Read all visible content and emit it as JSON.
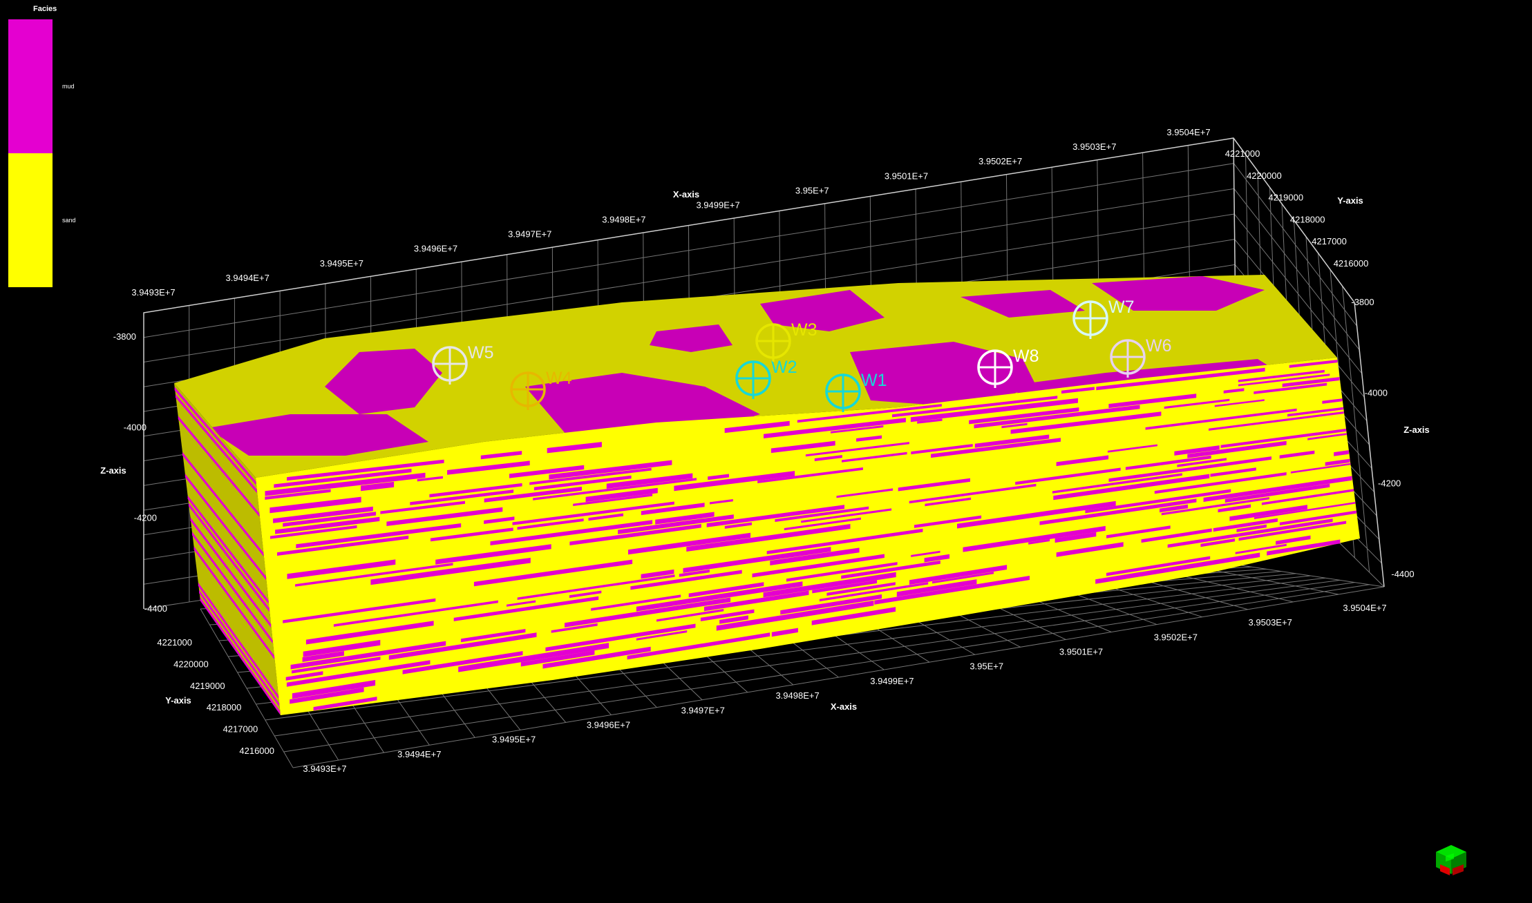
{
  "legend": {
    "title": "Facies",
    "entries": [
      {
        "label": "mud",
        "color": "#e400d0"
      },
      {
        "label": "sand",
        "color": "#ffff00"
      }
    ]
  },
  "colors": {
    "mud": "#e400d0",
    "sand": "#ffff00",
    "sand_top": "#d2d200",
    "sand_side": "#bcbc00",
    "mud_top": "#c800b6",
    "grid": "#8a8a8a",
    "background": "#000000"
  },
  "axes": {
    "x_title": "X-axis",
    "y_title": "Y-axis",
    "z_title": "Z-axis",
    "x_ticks": [
      "3.9493E+7",
      "3.9494E+7",
      "3.9495E+7",
      "3.9496E+7",
      "3.9497E+7",
      "3.9498E+7",
      "3.9499E+7",
      "3.95E+7",
      "3.9501E+7",
      "3.9502E+7",
      "3.9503E+7",
      "3.9504E+7"
    ],
    "y_ticks": [
      "4216000",
      "4217000",
      "4218000",
      "4219000",
      "4220000",
      "4221000"
    ],
    "z_ticks_left": [
      "-3800",
      "-4000",
      "-4200",
      "-4400"
    ],
    "z_ticks_right": [
      "-3800",
      "-4000",
      "-4200",
      "-4400"
    ]
  },
  "wells": [
    {
      "name": "W1",
      "color": "#16d8d8"
    },
    {
      "name": "W2",
      "color": "#16d8d8"
    },
    {
      "name": "W3",
      "color": "#e6e600"
    },
    {
      "name": "W4",
      "color": "#e6b800"
    },
    {
      "name": "W5",
      "color": "#e6e6e6"
    },
    {
      "name": "W6",
      "color": "#e6d2ef"
    },
    {
      "name": "W7",
      "color": "#d8f8f8"
    },
    {
      "name": "W8",
      "color": "#ffffff"
    }
  ],
  "orientation_cube": {
    "name": "orientation-cube-icon",
    "colors": [
      "#00d000",
      "#e00000",
      "#a00000",
      "#008800"
    ]
  }
}
